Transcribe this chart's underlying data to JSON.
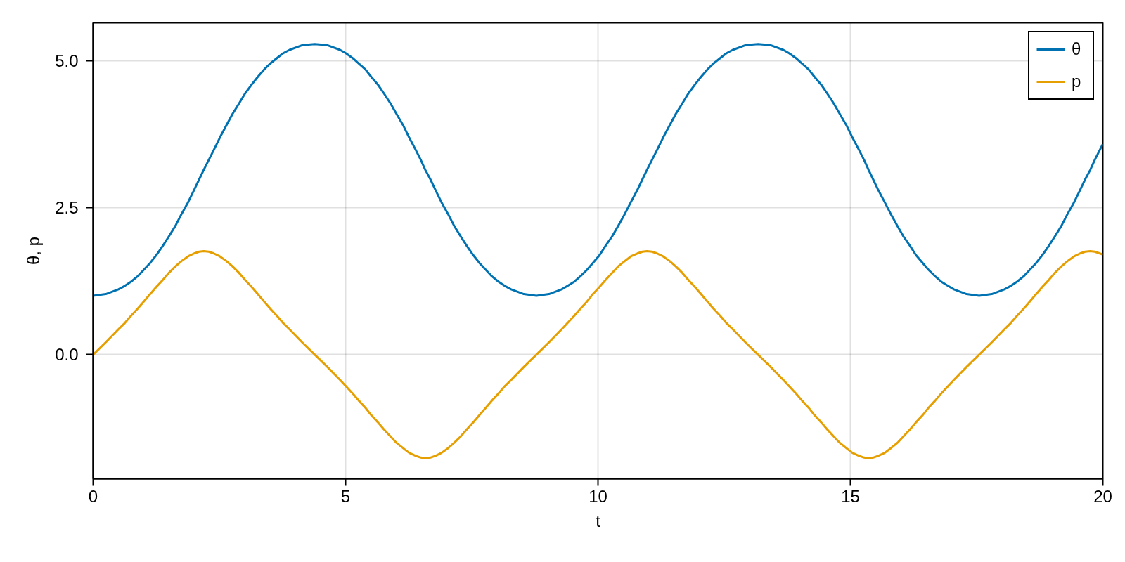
{
  "chart_data": {
    "type": "line",
    "xlabel": "t",
    "ylabel": "θ, p",
    "x": [
      0,
      0.25,
      0.5,
      0.63,
      0.75,
      0.88,
      1,
      1.13,
      1.25,
      1.38,
      1.5,
      1.63,
      1.75,
      1.88,
      2,
      2.1,
      2.19,
      2.29,
      2.39,
      2.51,
      2.64,
      2.76,
      2.89,
      3.01,
      3.14,
      3.26,
      3.39,
      3.51,
      3.64,
      3.76,
      3.89,
      4.14,
      4.39,
      4.64,
      4.89,
      5.01,
      5.14,
      5.26,
      5.39,
      5.51,
      5.64,
      5.76,
      5.89,
      6.01,
      6.14,
      6.26,
      6.39,
      6.49,
      6.58,
      6.68,
      6.78,
      6.9,
      7.03,
      7.15,
      7.28,
      7.4,
      7.53,
      7.65,
      7.78,
      7.9,
      8.03,
      8.15,
      8.28,
      8.53,
      8.78,
      9.03,
      9.28,
      9.4,
      9.53,
      9.65,
      9.78,
      9.9,
      10.03,
      10.15,
      10.28,
      10.4,
      10.53,
      10.65,
      10.78,
      10.88,
      10.97,
      11.07,
      11.17,
      11.29,
      11.42,
      11.54,
      11.67,
      11.79,
      11.92,
      12.04,
      12.17,
      12.29,
      12.42,
      12.54,
      12.67,
      12.92,
      13.17,
      13.42,
      13.67,
      13.79,
      13.92,
      14.04,
      14.17,
      14.29,
      14.42,
      14.54,
      14.67,
      14.79,
      14.92,
      15.04,
      15.17,
      15.27,
      15.36,
      15.45,
      15.55,
      15.68,
      15.8,
      15.93,
      16.05,
      16.18,
      16.3,
      16.43,
      16.55,
      16.68,
      16.8,
      16.93,
      17.05,
      17.3,
      17.55,
      17.8,
      18.05,
      18.18,
      18.3,
      18.43,
      18.55,
      18.68,
      18.8,
      18.93,
      19.05,
      19.18,
      19.3,
      19.43,
      19.55,
      19.65,
      19.75,
      19.84,
      19.94,
      20
    ],
    "series": [
      {
        "name": "θ",
        "color": "#0072b2",
        "values": [
          1.0,
          1.03,
          1.11,
          1.17,
          1.24,
          1.33,
          1.44,
          1.56,
          1.69,
          1.85,
          2.01,
          2.19,
          2.39,
          2.59,
          2.8,
          2.98,
          3.14,
          3.31,
          3.48,
          3.69,
          3.9,
          4.09,
          4.27,
          4.44,
          4.59,
          4.72,
          4.85,
          4.95,
          5.04,
          5.12,
          5.18,
          5.26,
          5.28,
          5.26,
          5.18,
          5.12,
          5.04,
          4.95,
          4.85,
          4.72,
          4.59,
          4.44,
          4.27,
          4.09,
          3.9,
          3.69,
          3.48,
          3.31,
          3.14,
          2.98,
          2.8,
          2.59,
          2.39,
          2.19,
          2.01,
          1.85,
          1.69,
          1.56,
          1.44,
          1.33,
          1.24,
          1.17,
          1.11,
          1.03,
          1.0,
          1.03,
          1.11,
          1.17,
          1.24,
          1.33,
          1.44,
          1.56,
          1.69,
          1.85,
          2.01,
          2.19,
          2.39,
          2.59,
          2.8,
          2.98,
          3.14,
          3.31,
          3.48,
          3.69,
          3.9,
          4.09,
          4.27,
          4.44,
          4.59,
          4.72,
          4.85,
          4.95,
          5.04,
          5.12,
          5.18,
          5.26,
          5.28,
          5.26,
          5.18,
          5.12,
          5.04,
          4.95,
          4.85,
          4.72,
          4.59,
          4.44,
          4.27,
          4.09,
          3.9,
          3.69,
          3.48,
          3.31,
          3.14,
          2.98,
          2.8,
          2.59,
          2.39,
          2.19,
          2.01,
          1.85,
          1.69,
          1.56,
          1.44,
          1.33,
          1.24,
          1.17,
          1.11,
          1.03,
          1.0,
          1.03,
          1.11,
          1.17,
          1.24,
          1.33,
          1.44,
          1.56,
          1.69,
          1.85,
          2.01,
          2.19,
          2.39,
          2.59,
          2.8,
          2.98,
          3.14,
          3.31,
          3.48,
          3.58
        ]
      },
      {
        "name": "p",
        "color": "#e69f00",
        "values": [
          0.0,
          0.21,
          0.43,
          0.54,
          0.66,
          0.78,
          0.9,
          1.03,
          1.15,
          1.27,
          1.39,
          1.5,
          1.59,
          1.67,
          1.72,
          1.75,
          1.76,
          1.75,
          1.72,
          1.67,
          1.59,
          1.5,
          1.39,
          1.27,
          1.15,
          1.03,
          0.9,
          0.78,
          0.66,
          0.54,
          0.43,
          0.21,
          0.0,
          -0.21,
          -0.43,
          -0.54,
          -0.66,
          -0.78,
          -0.9,
          -1.03,
          -1.15,
          -1.27,
          -1.39,
          -1.5,
          -1.59,
          -1.67,
          -1.72,
          -1.75,
          -1.76,
          -1.75,
          -1.72,
          -1.67,
          -1.59,
          -1.5,
          -1.39,
          -1.27,
          -1.15,
          -1.03,
          -0.9,
          -0.78,
          -0.66,
          -0.54,
          -0.43,
          -0.21,
          0.0,
          0.21,
          0.43,
          0.54,
          0.66,
          0.78,
          0.9,
          1.03,
          1.15,
          1.27,
          1.39,
          1.5,
          1.59,
          1.67,
          1.72,
          1.75,
          1.76,
          1.75,
          1.72,
          1.67,
          1.59,
          1.5,
          1.39,
          1.27,
          1.15,
          1.03,
          0.9,
          0.78,
          0.66,
          0.54,
          0.43,
          0.21,
          0.0,
          -0.21,
          -0.43,
          -0.54,
          -0.66,
          -0.78,
          -0.9,
          -1.03,
          -1.15,
          -1.27,
          -1.39,
          -1.5,
          -1.59,
          -1.67,
          -1.72,
          -1.75,
          -1.76,
          -1.75,
          -1.72,
          -1.67,
          -1.59,
          -1.5,
          -1.39,
          -1.27,
          -1.15,
          -1.03,
          -0.9,
          -0.78,
          -0.66,
          -0.54,
          -0.43,
          -0.21,
          0.0,
          0.21,
          0.43,
          0.54,
          0.66,
          0.78,
          0.9,
          1.03,
          1.15,
          1.27,
          1.39,
          1.5,
          1.59,
          1.67,
          1.72,
          1.75,
          1.76,
          1.75,
          1.72,
          1.7
        ]
      }
    ],
    "xlim": [
      0,
      20
    ],
    "xticks": [
      0,
      5,
      10,
      15,
      20
    ],
    "ylim": [
      -2.11,
      5.64
    ],
    "yticks": [
      {
        "value": 0,
        "label": "0.0"
      },
      2.5,
      {
        "value": 5,
        "label": "5.0"
      }
    ],
    "grid": true,
    "legend": "top right",
    "line_style": "solid"
  }
}
